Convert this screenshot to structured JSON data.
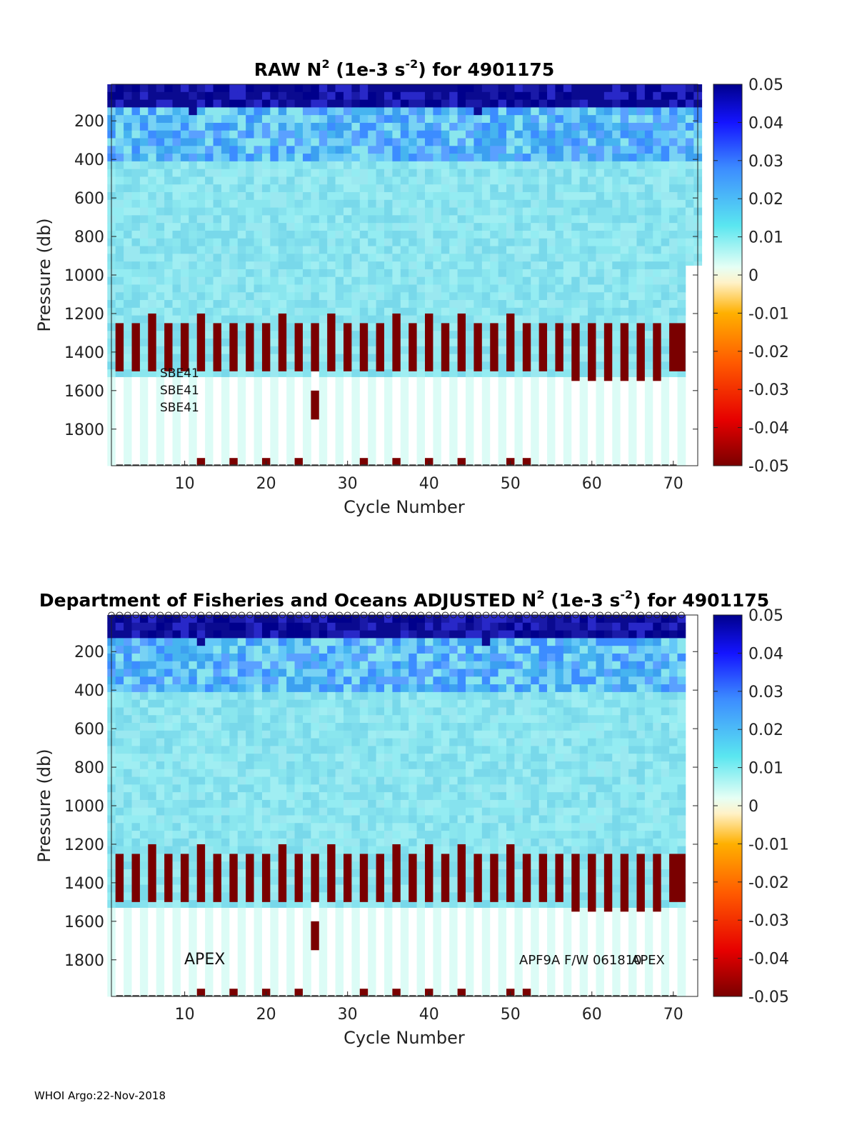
{
  "chart_data": [
    {
      "type": "heatmap",
      "id": "raw",
      "title_main": "RAW N",
      "title_sup": "2",
      "title_mid": " (1e-3 s",
      "title_sup2": "-2",
      "title_end": ") for 4901175",
      "xlabel": "Cycle Number",
      "ylabel": "Pressure (db)",
      "xlim": [
        1,
        73
      ],
      "ylim": [
        1990,
        10
      ],
      "x_ticks": [
        10,
        20,
        30,
        40,
        50,
        60,
        70
      ],
      "y_ticks": [
        200,
        400,
        600,
        800,
        1000,
        1200,
        1400,
        1600,
        1800
      ],
      "annotations": [
        "SBE41",
        "SBE41",
        "SBE41"
      ],
      "last_profile_max_depth": 950
    },
    {
      "type": "heatmap",
      "id": "adjusted",
      "title_main": "Department of Fisheries and Oceans  ADJUSTED N",
      "title_sup": "2",
      "title_mid": " (1e-3 s",
      "title_sup2": "-2",
      "title_end": ") for 4901175",
      "xlabel": "Cycle Number",
      "ylabel": "Pressure (db)",
      "xlim": [
        1,
        73
      ],
      "ylim": [
        1990,
        10
      ],
      "x_ticks": [
        10,
        20,
        30,
        40,
        50,
        60,
        70
      ],
      "y_ticks": [
        200,
        400,
        600,
        800,
        1000,
        1200,
        1400,
        1600,
        1800
      ],
      "annotations": [
        "APEX",
        "APF9A F/W 061810",
        "APEX"
      ],
      "qc_marker": "o"
    }
  ],
  "colorbar": {
    "ticks": [
      "0.05",
      "0.04",
      "0.03",
      "0.02",
      "0.01",
      "0",
      "-0.01",
      "-0.02",
      "-0.03",
      "-0.04",
      "-0.05"
    ],
    "range": [
      -0.05,
      0.05
    ],
    "colors": [
      "#7a0000",
      "#e60000",
      "#ff5a00",
      "#ffb000",
      "#fff2c8",
      "#e6fff5",
      "#5ae6f0",
      "#3c8cff",
      "#1414ff",
      "#00008c"
    ]
  },
  "colors": {
    "deep_red": "#7a0000",
    "interior": "#8ae6ee",
    "surface": "#0a0a90",
    "deep_bin": "#dcfcf6"
  },
  "profiles": {
    "tall_bar_cycles": [
      6,
      12,
      22,
      28,
      36,
      40,
      44,
      50
    ],
    "deep_bar_cycles": [
      58,
      60,
      62,
      64,
      66,
      68
    ],
    "bottom_marks_cycles": [
      12,
      16,
      20,
      24,
      32,
      36,
      40,
      44,
      50,
      52
    ],
    "short_profile_cycle": 26
  },
  "footer": "WHOI Argo:22-Nov-2018"
}
